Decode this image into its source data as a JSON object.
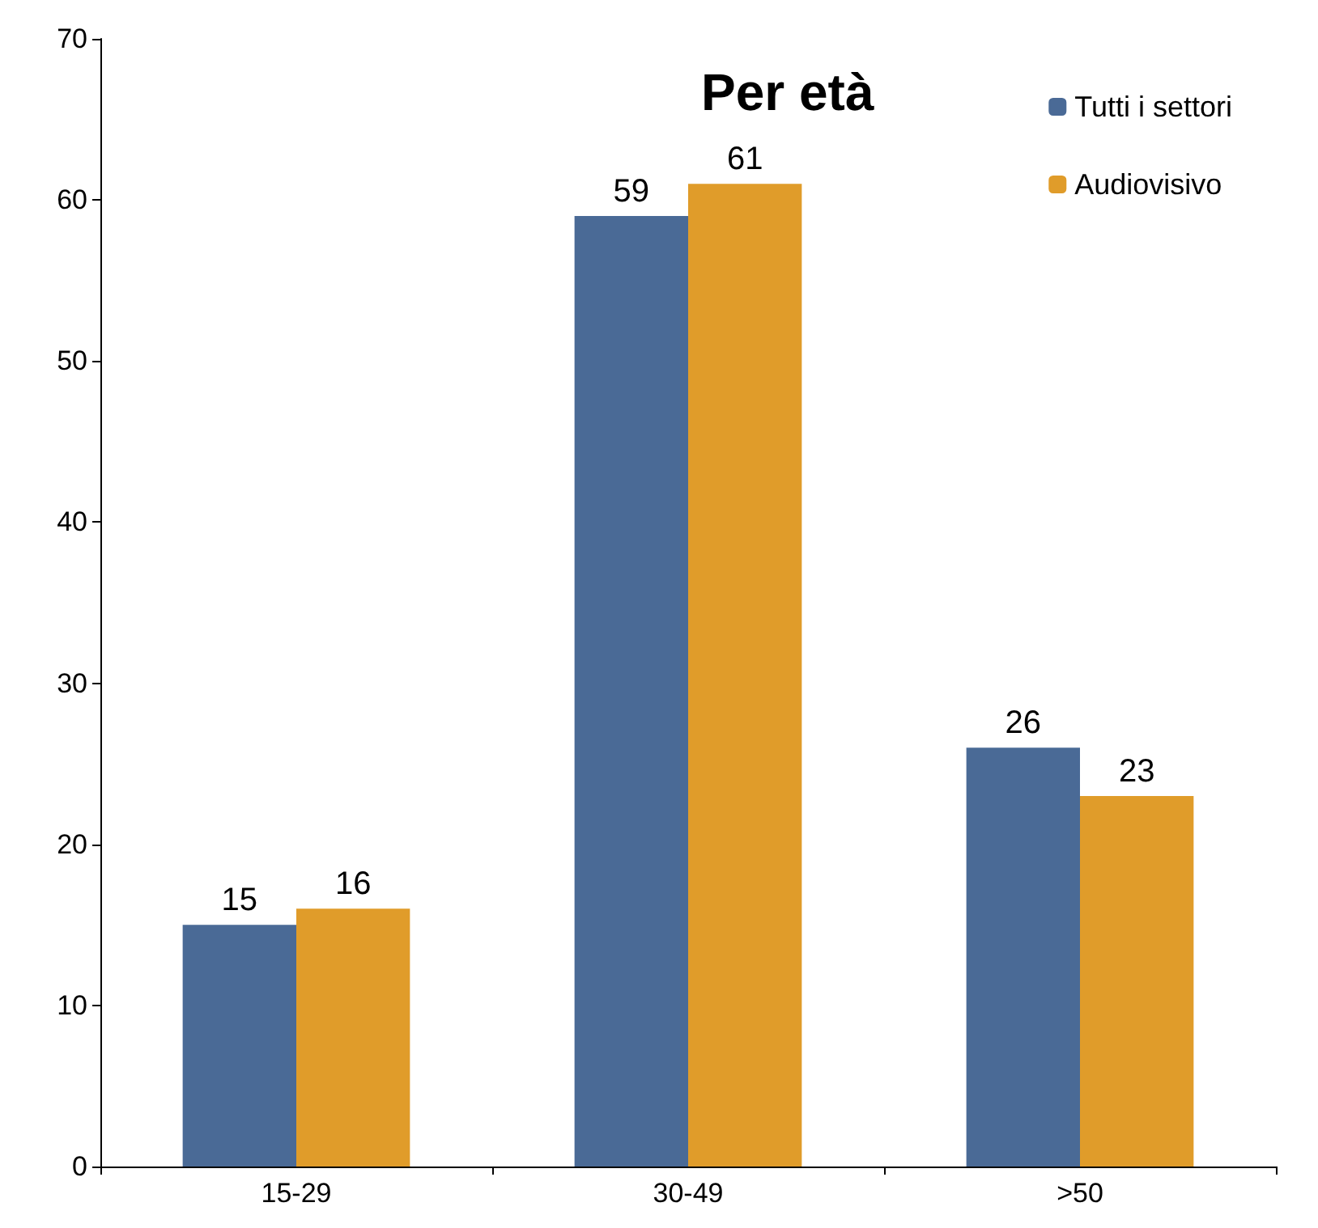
{
  "chart_data": {
    "type": "bar",
    "title": "Per età",
    "categories": [
      "15-29",
      "30-49",
      ">50"
    ],
    "series": [
      {
        "name": "Tutti i settori",
        "color": "#4a6a96",
        "values": [
          15,
          59,
          26
        ]
      },
      {
        "name": "Audiovisivo",
        "color": "#e09c2a",
        "values": [
          16,
          61,
          23
        ]
      }
    ],
    "ylim": [
      0,
      70
    ],
    "yticks": [
      0,
      10,
      20,
      30,
      40,
      50,
      60,
      70
    ],
    "grid": false,
    "legend": "top right",
    "data_labels": true
  }
}
